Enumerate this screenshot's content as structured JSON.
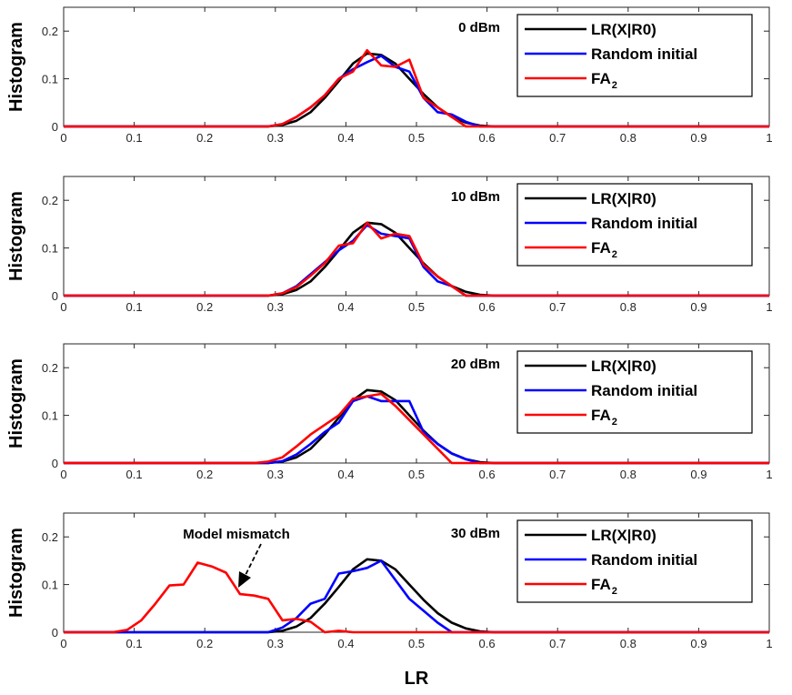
{
  "chart_data": {
    "type": "line",
    "xlabel": "LR",
    "ylabel": "Histogram",
    "xlim": [
      0,
      1
    ],
    "ylim": [
      0,
      0.25
    ],
    "xticks": [
      "0",
      "0.1",
      "0.2",
      "0.3",
      "0.4",
      "0.5",
      "0.6",
      "0.7",
      "0.8",
      "0.9",
      "1"
    ],
    "yticks": [
      "0",
      "0.1",
      "0.2"
    ],
    "legend_position": "top-right",
    "series_colors": [
      "#000000",
      "#0000ff",
      "#ff0000"
    ],
    "legend": {
      "entry1": "LR(X|R0)",
      "entry2": "Random initial",
      "entry3_main": "FA",
      "entry3_sub": "2"
    },
    "panels": [
      {
        "label": "0 dBm",
        "series": [
          {
            "name": "LR(X|R0)",
            "x": [
              0,
              0.29,
              0.31,
              0.33,
              0.35,
              0.37,
              0.39,
              0.41,
              0.43,
              0.45,
              0.47,
              0.49,
              0.51,
              0.53,
              0.55,
              0.57,
              0.59,
              0.61,
              1
            ],
            "y": [
              0,
              0,
              0.003,
              0.012,
              0.03,
              0.06,
              0.095,
              0.132,
              0.153,
              0.15,
              0.132,
              0.1,
              0.068,
              0.04,
              0.02,
              0.008,
              0.002,
              0,
              0
            ]
          },
          {
            "name": "Random initial",
            "x": [
              0,
              0.29,
              0.31,
              0.33,
              0.35,
              0.37,
              0.39,
              0.41,
              0.43,
              0.45,
              0.47,
              0.49,
              0.51,
              0.53,
              0.55,
              0.57,
              0.59,
              1
            ],
            "y": [
              0,
              0,
              0.005,
              0.02,
              0.04,
              0.065,
              0.1,
              0.12,
              0.135,
              0.148,
              0.125,
              0.115,
              0.06,
              0.03,
              0.025,
              0.01,
              0,
              0
            ]
          },
          {
            "name": "FA2",
            "x": [
              0,
              0.29,
              0.31,
              0.33,
              0.35,
              0.37,
              0.39,
              0.41,
              0.43,
              0.45,
              0.47,
              0.49,
              0.51,
              0.53,
              0.55,
              0.57,
              1
            ],
            "y": [
              0,
              0,
              0.005,
              0.02,
              0.04,
              0.065,
              0.1,
              0.115,
              0.16,
              0.128,
              0.125,
              0.14,
              0.06,
              0.04,
              0.02,
              0,
              0
            ]
          }
        ]
      },
      {
        "label": "10 dBm",
        "series": [
          {
            "name": "LR(X|R0)",
            "x": [
              0,
              0.29,
              0.31,
              0.33,
              0.35,
              0.37,
              0.39,
              0.41,
              0.43,
              0.45,
              0.47,
              0.49,
              0.51,
              0.53,
              0.55,
              0.57,
              0.59,
              0.61,
              1
            ],
            "y": [
              0,
              0,
              0.003,
              0.012,
              0.03,
              0.06,
              0.095,
              0.132,
              0.153,
              0.15,
              0.132,
              0.1,
              0.068,
              0.04,
              0.02,
              0.008,
              0.002,
              0,
              0
            ]
          },
          {
            "name": "Random initial",
            "x": [
              0,
              0.29,
              0.31,
              0.33,
              0.35,
              0.37,
              0.39,
              0.41,
              0.43,
              0.45,
              0.47,
              0.49,
              0.51,
              0.53,
              0.55,
              0.57,
              1
            ],
            "y": [
              0,
              0,
              0.005,
              0.02,
              0.045,
              0.07,
              0.095,
              0.115,
              0.148,
              0.13,
              0.125,
              0.12,
              0.06,
              0.03,
              0.02,
              0,
              0
            ]
          },
          {
            "name": "FA2",
            "x": [
              0,
              0.29,
              0.31,
              0.33,
              0.35,
              0.37,
              0.39,
              0.41,
              0.43,
              0.45,
              0.47,
              0.49,
              0.51,
              0.53,
              0.55,
              0.57,
              1
            ],
            "y": [
              0,
              0,
              0.005,
              0.018,
              0.042,
              0.068,
              0.105,
              0.11,
              0.153,
              0.12,
              0.13,
              0.125,
              0.065,
              0.04,
              0.02,
              0,
              0
            ]
          }
        ]
      },
      {
        "label": "20 dBm",
        "series": [
          {
            "name": "LR(X|R0)",
            "x": [
              0,
              0.29,
              0.31,
              0.33,
              0.35,
              0.37,
              0.39,
              0.41,
              0.43,
              0.45,
              0.47,
              0.49,
              0.51,
              0.53,
              0.55,
              0.57,
              0.59,
              0.61,
              1
            ],
            "y": [
              0,
              0,
              0.003,
              0.012,
              0.03,
              0.06,
              0.095,
              0.132,
              0.153,
              0.15,
              0.132,
              0.1,
              0.068,
              0.04,
              0.02,
              0.008,
              0.002,
              0,
              0
            ]
          },
          {
            "name": "Random initial",
            "x": [
              0,
              0.29,
              0.31,
              0.33,
              0.35,
              0.37,
              0.39,
              0.41,
              0.43,
              0.45,
              0.47,
              0.49,
              0.51,
              0.53,
              0.55,
              0.57,
              0.59,
              1
            ],
            "y": [
              0,
              0,
              0.004,
              0.018,
              0.04,
              0.065,
              0.085,
              0.13,
              0.14,
              0.13,
              0.13,
              0.13,
              0.065,
              0.04,
              0.02,
              0.008,
              0,
              0
            ]
          },
          {
            "name": "FA2",
            "x": [
              0,
              0.27,
              0.29,
              0.31,
              0.33,
              0.35,
              0.37,
              0.39,
              0.41,
              0.43,
              0.45,
              0.47,
              0.49,
              0.51,
              0.53,
              0.55,
              1
            ],
            "y": [
              0,
              0,
              0.003,
              0.012,
              0.035,
              0.06,
              0.08,
              0.1,
              0.135,
              0.14,
              0.145,
              0.12,
              0.09,
              0.06,
              0.03,
              0,
              0
            ]
          }
        ]
      },
      {
        "label": "30 dBm",
        "annotation": "Model mismatch",
        "series": [
          {
            "name": "LR(X|R0)",
            "x": [
              0,
              0.29,
              0.31,
              0.33,
              0.35,
              0.37,
              0.39,
              0.41,
              0.43,
              0.45,
              0.47,
              0.49,
              0.51,
              0.53,
              0.55,
              0.57,
              0.59,
              0.61,
              1
            ],
            "y": [
              0,
              0,
              0.003,
              0.012,
              0.03,
              0.06,
              0.095,
              0.132,
              0.153,
              0.15,
              0.132,
              0.1,
              0.068,
              0.04,
              0.02,
              0.008,
              0.002,
              0,
              0
            ]
          },
          {
            "name": "Random initial",
            "x": [
              0,
              0.29,
              0.31,
              0.33,
              0.35,
              0.37,
              0.39,
              0.41,
              0.43,
              0.45,
              0.47,
              0.49,
              0.51,
              0.53,
              0.55,
              1
            ],
            "y": [
              0,
              0,
              0.01,
              0.03,
              0.06,
              0.07,
              0.123,
              0.128,
              0.135,
              0.15,
              0.11,
              0.07,
              0.045,
              0.02,
              0,
              0
            ]
          },
          {
            "name": "FA2",
            "x": [
              0,
              0.07,
              0.09,
              0.11,
              0.13,
              0.15,
              0.17,
              0.19,
              0.21,
              0.23,
              0.25,
              0.27,
              0.29,
              0.31,
              0.33,
              0.35,
              0.37,
              0.39,
              0.41,
              1
            ],
            "y": [
              0,
              0,
              0.005,
              0.025,
              0.06,
              0.098,
              0.1,
              0.146,
              0.138,
              0.125,
              0.08,
              0.077,
              0.07,
              0.025,
              0.028,
              0.022,
              0,
              0.003,
              0,
              0
            ]
          }
        ]
      }
    ]
  }
}
